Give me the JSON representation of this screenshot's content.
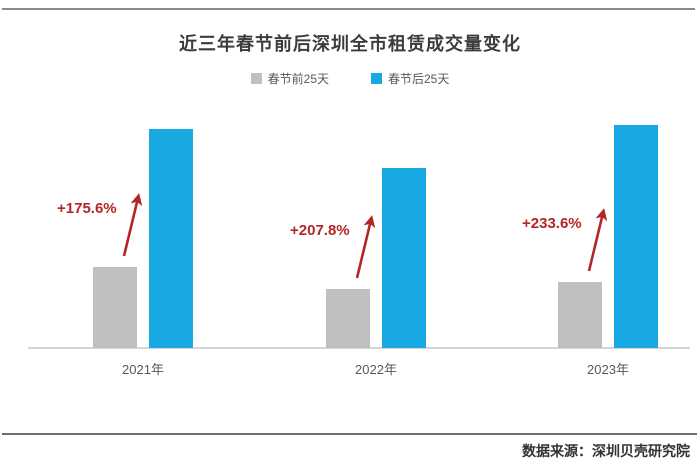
{
  "source": "数据来源：深圳贝壳研究院",
  "chart_data": {
    "type": "bar",
    "title": "近三年春节前后深圳全市租赁成交量变化",
    "categories": [
      "2021年",
      "2022年",
      "2023年"
    ],
    "series": [
      {
        "name": "春节前25天",
        "color": "#bfbfbf",
        "values": [
          81,
          59,
          66
        ]
      },
      {
        "name": "春节后25天",
        "color": "#18a9e2",
        "values": [
          219,
          180,
          223
        ]
      }
    ],
    "annotations": [
      {
        "category": "2021年",
        "label": "+175.6%"
      },
      {
        "category": "2022年",
        "label": "+207.8%"
      },
      {
        "category": "2023年",
        "label": "+233.6%"
      }
    ],
    "values_unit": "relative bar height; no numeric value axis shown",
    "annotation_color": "#b42525",
    "axis_color": "#d6d6d6",
    "legend_position": "top",
    "grid": false,
    "ylim": [
      0,
      240
    ]
  }
}
